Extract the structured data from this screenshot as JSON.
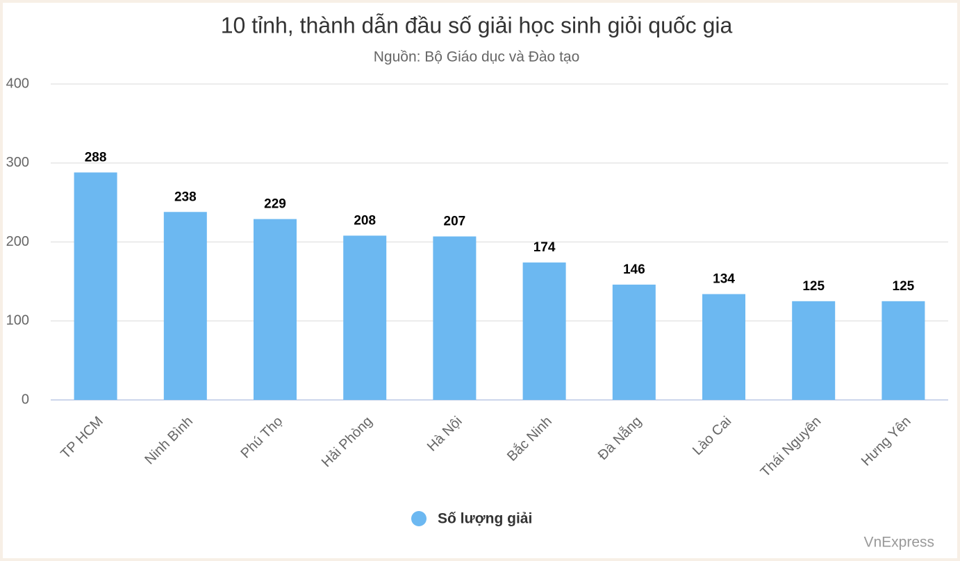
{
  "chart_data": {
    "type": "bar",
    "title": "10 tỉnh, thành dẫn đầu số giải học sinh giỏi quốc gia",
    "subtitle": "Nguồn: Bộ Giáo dục và Đào tạo",
    "categories": [
      "TP HCM",
      "Ninh Bình",
      "Phú Thọ",
      "Hải Phòng",
      "Hà Nội",
      "Bắc Ninh",
      "Đà Nẵng",
      "Lào Cai",
      "Thái Nguyên",
      "Hưng Yên"
    ],
    "series": [
      {
        "name": "Số lượng giải",
        "color": "#6cb8f1",
        "values": [
          288,
          238,
          229,
          208,
          207,
          174,
          146,
          134,
          125,
          125
        ]
      }
    ],
    "ylim": [
      0,
      400
    ],
    "yticks": [
      0,
      100,
      200,
      300,
      400
    ],
    "grid": true,
    "credit": "VnExpress"
  }
}
